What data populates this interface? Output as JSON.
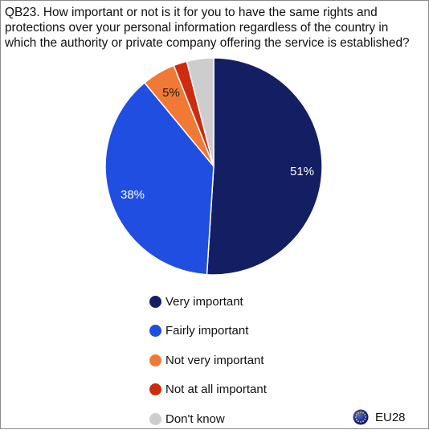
{
  "chart_data": {
    "type": "pie",
    "title": "QB23. How important or not is it for you to have the same rights and protections over your personal information regardless of the country in which the authority or private company offering the service is established?",
    "slices": [
      {
        "label": "Very important",
        "value": 51,
        "display": "51%",
        "color": "#141f63"
      },
      {
        "label": "Fairly important",
        "value": 38,
        "display": "38%",
        "color": "#1f4ee0"
      },
      {
        "label": "Not very important",
        "value": 5,
        "display": "5%",
        "color": "#f07a35"
      },
      {
        "label": "Not at all important",
        "value": 2,
        "display": "",
        "color": "#cc2c10"
      },
      {
        "label": "Don't know",
        "value": 4,
        "display": "",
        "color": "#cdcdcd"
      }
    ],
    "start_angle_deg": 0,
    "direction": "clockwise",
    "legend_position": "bottom"
  },
  "badge": {
    "label": "EU28",
    "icon": "eu-flag-icon"
  }
}
